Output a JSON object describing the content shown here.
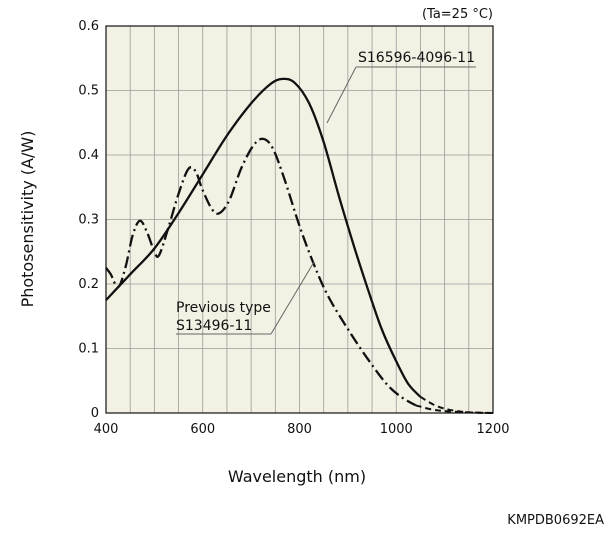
{
  "chart_data": {
    "type": "line",
    "title": "",
    "condition_note": "(Ta=25 °C)",
    "xlabel": "Wavelength (nm)",
    "ylabel": "Photosensitivity (A/W)",
    "xlim": [
      400,
      1200
    ],
    "ylim": [
      0,
      0.6
    ],
    "x_ticks": [
      "400",
      "600",
      "800",
      "1000",
      "1200"
    ],
    "x_tick_values": [
      400,
      600,
      800,
      1000,
      1200
    ],
    "y_ticks": [
      "0",
      "0.1",
      "0.2",
      "0.3",
      "0.4",
      "0.5",
      "0.6"
    ],
    "y_tick_values": [
      0,
      0.1,
      0.2,
      0.3,
      0.4,
      0.5,
      0.6
    ],
    "grid": true,
    "background": "#f3f1e3",
    "series": [
      {
        "name": "S16596-4096-11",
        "style": "solid",
        "color": "#111111",
        "points": [
          {
            "x": 400,
            "y": 0.175
          },
          {
            "x": 450,
            "y": 0.215
          },
          {
            "x": 500,
            "y": 0.255
          },
          {
            "x": 550,
            "y": 0.31
          },
          {
            "x": 600,
            "y": 0.37
          },
          {
            "x": 650,
            "y": 0.43
          },
          {
            "x": 700,
            "y": 0.48
          },
          {
            "x": 740,
            "y": 0.51
          },
          {
            "x": 765,
            "y": 0.518
          },
          {
            "x": 790,
            "y": 0.512
          },
          {
            "x": 820,
            "y": 0.48
          },
          {
            "x": 850,
            "y": 0.42
          },
          {
            "x": 880,
            "y": 0.34
          },
          {
            "x": 910,
            "y": 0.265
          },
          {
            "x": 940,
            "y": 0.195
          },
          {
            "x": 970,
            "y": 0.13
          },
          {
            "x": 1000,
            "y": 0.08
          },
          {
            "x": 1025,
            "y": 0.045
          },
          {
            "x": 1050,
            "y": 0.025
          },
          {
            "x": 1080,
            "y": 0.012
          },
          {
            "x": 1110,
            "y": 0.005
          },
          {
            "x": 1150,
            "y": 0.001
          },
          {
            "x": 1200,
            "y": 0.0
          }
        ]
      },
      {
        "name": "Previous type S13496-11",
        "style": "dash-dot",
        "color": "#111111",
        "points": [
          {
            "x": 400,
            "y": 0.225
          },
          {
            "x": 410,
            "y": 0.215
          },
          {
            "x": 425,
            "y": 0.195
          },
          {
            "x": 440,
            "y": 0.225
          },
          {
            "x": 455,
            "y": 0.275
          },
          {
            "x": 470,
            "y": 0.298
          },
          {
            "x": 485,
            "y": 0.28
          },
          {
            "x": 500,
            "y": 0.25
          },
          {
            "x": 510,
            "y": 0.245
          },
          {
            "x": 530,
            "y": 0.29
          },
          {
            "x": 550,
            "y": 0.34
          },
          {
            "x": 570,
            "y": 0.378
          },
          {
            "x": 585,
            "y": 0.375
          },
          {
            "x": 600,
            "y": 0.345
          },
          {
            "x": 620,
            "y": 0.315
          },
          {
            "x": 635,
            "y": 0.31
          },
          {
            "x": 655,
            "y": 0.33
          },
          {
            "x": 680,
            "y": 0.38
          },
          {
            "x": 705,
            "y": 0.415
          },
          {
            "x": 725,
            "y": 0.425
          },
          {
            "x": 745,
            "y": 0.41
          },
          {
            "x": 770,
            "y": 0.36
          },
          {
            "x": 800,
            "y": 0.29
          },
          {
            "x": 830,
            "y": 0.23
          },
          {
            "x": 860,
            "y": 0.18
          },
          {
            "x": 900,
            "y": 0.13
          },
          {
            "x": 940,
            "y": 0.085
          },
          {
            "x": 980,
            "y": 0.045
          },
          {
            "x": 1010,
            "y": 0.025
          },
          {
            "x": 1040,
            "y": 0.012
          },
          {
            "x": 1070,
            "y": 0.006
          },
          {
            "x": 1100,
            "y": 0.003
          },
          {
            "x": 1150,
            "y": 0.001
          },
          {
            "x": 1200,
            "y": 0.0
          }
        ]
      }
    ],
    "annotations": [
      {
        "text": "S16596-4096-11",
        "points_to": {
          "x": 855,
          "y": 0.44
        }
      },
      {
        "text": "Previous type",
        "line2": "S13496-11",
        "points_to": {
          "x": 830,
          "y": 0.22
        }
      }
    ]
  },
  "figure_code": "KMPDB0692EA"
}
